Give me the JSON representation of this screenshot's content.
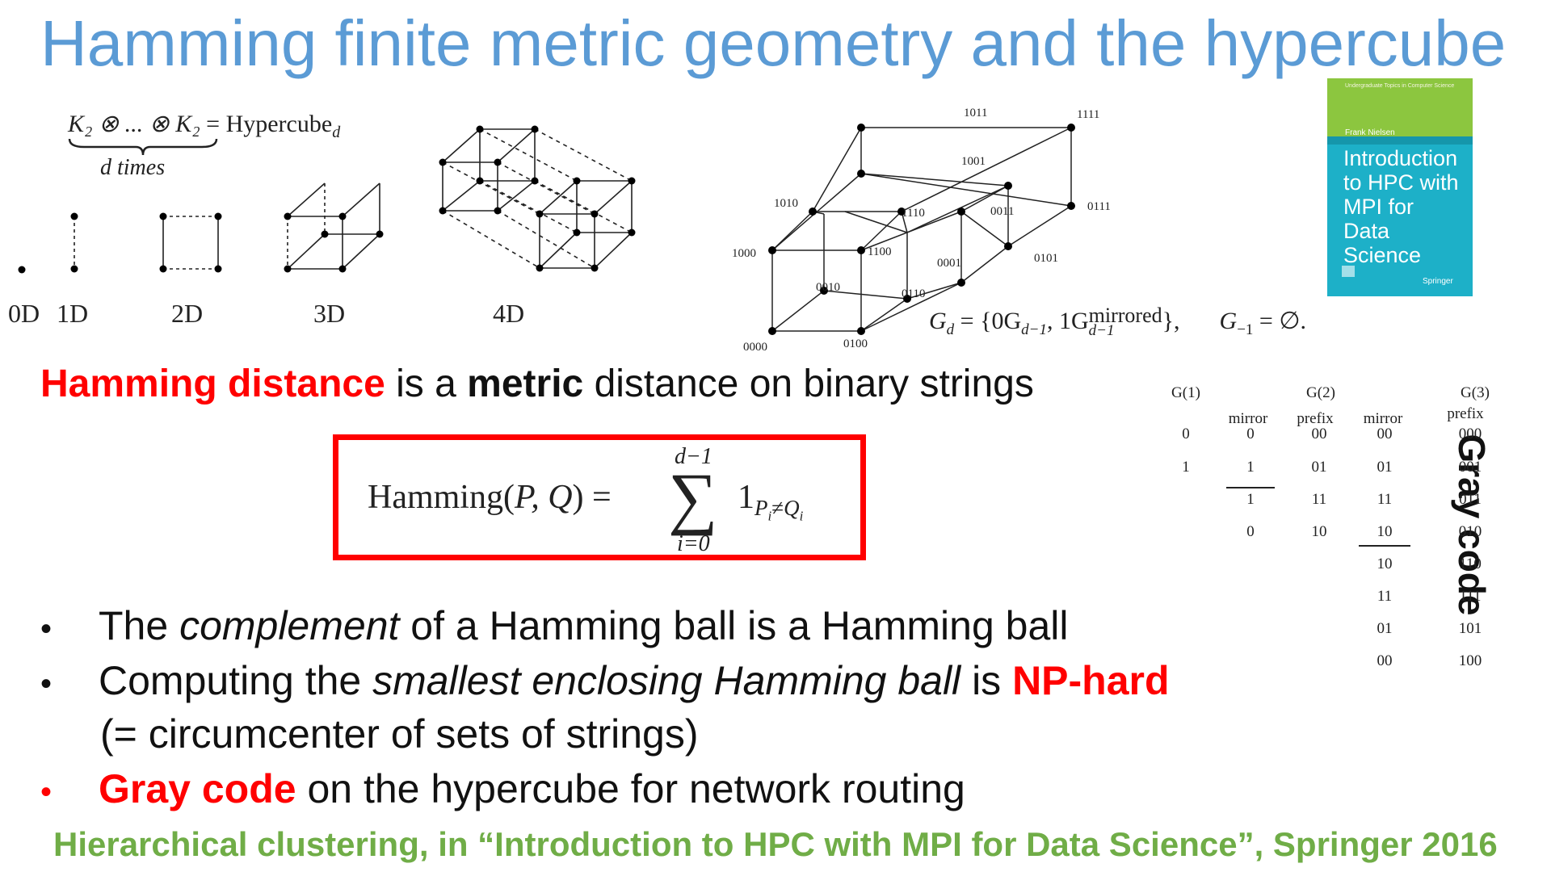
{
  "title": "Hamming finite metric geometry and the hypercube",
  "hypercube_product": {
    "lhs": "K₂ ⊗ ... ⊗ K₂",
    "eq": "= Hypercube",
    "sub": "d",
    "brace_label": "d times"
  },
  "dimension_labels": [
    "0D",
    "1D",
    "2D",
    "3D",
    "4D"
  ],
  "cube_labels": [
    "1011",
    "1111",
    "1001",
    "1010",
    "1110",
    "0011",
    "0111",
    "1000",
    "1100",
    "0001",
    "0101",
    "0010",
    "0110",
    "0000",
    "0100"
  ],
  "gray_formula": {
    "lhs": "G",
    "lhs_sub": "d",
    "open": " = {0G",
    "sub1": "d−1",
    "mid": ", 1G",
    "sup2": "mirrored",
    "sub2": "d−1",
    "close": "},",
    "base": "G",
    "base_sub": "−1",
    "base_rhs": " = ∅."
  },
  "heading": {
    "part1": "Hamming distance",
    "part2": " is a ",
    "part3": "metric",
    "part4": " distance on binary strings"
  },
  "hamming_formula": {
    "lhs": "Hamming(",
    "args": "P, Q",
    "rhs": ") =",
    "sum_top": "d−1",
    "sum_bottom": "i=0",
    "sigma": "∑",
    "one": "1",
    "sub": "P",
    "sub_i": "i",
    "neq": "≠",
    "sub_q": "Q",
    "sub_qi": "i"
  },
  "bullets": [
    {
      "text1": "The ",
      "italic": "complement",
      "text2": " of a Hamming ball is a Hamming ball"
    },
    {
      "text1": "Computing the ",
      "italic": "smallest enclosing Hamming ball",
      "text2": " is ",
      "highlight": "NP-hard"
    },
    {
      "cont": "(= circumcenter of sets of strings)"
    },
    {
      "highlight": "Gray code",
      "text2": " on the hypercube for network routing"
    }
  ],
  "footer": "Hierarchical clustering, in “Introduction to HPC with MPI for Data Science”, Springer 2016",
  "gray_vertical": "Gray code",
  "gray_table": {
    "headers": [
      "G(1)",
      "G(2)",
      "G(3)"
    ],
    "subheaders": [
      "mirror",
      "prefix",
      "mirror",
      "prefix"
    ],
    "col_g1": [
      "0",
      "1"
    ],
    "col_mirror1": [
      "0",
      "1",
      "1",
      "0"
    ],
    "col_prefix2": [
      "00",
      "01",
      "11",
      "10"
    ],
    "col_mirror2": [
      "00",
      "01",
      "11",
      "10",
      "10",
      "11",
      "01",
      "00"
    ],
    "col_prefix3": [
      "000",
      "001",
      "011",
      "010",
      "110",
      "111",
      "101",
      "100"
    ]
  },
  "book": {
    "series": "Undergraduate Topics in Computer Science",
    "author": "Frank Nielsen",
    "title": "Introduction to HPC with MPI for Data Science",
    "publisher": "Springer"
  },
  "colors": {
    "title": "#5b9bd5",
    "highlight": "#ff0000",
    "footer": "#70ad47",
    "book": "#1db0c8"
  }
}
